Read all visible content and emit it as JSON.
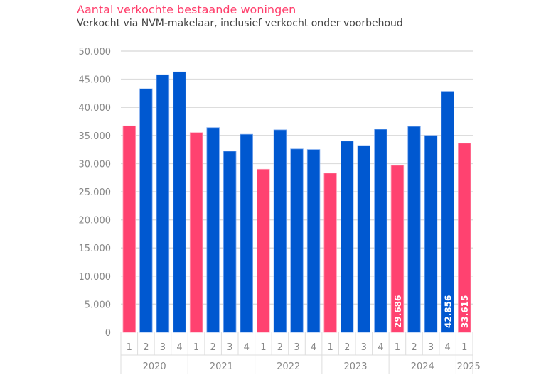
{
  "chart_data": {
    "type": "bar",
    "title": "Aantal verkochte bestaande woningen",
    "subtitle": "Verkocht via NVM-makelaar, inclusief verkocht onder voorbehoud",
    "ylim": [
      0,
      50000
    ],
    "yticks": [
      "0",
      "5.000",
      "10.000",
      "15.000",
      "20.000",
      "25.000",
      "30.000",
      "35.000",
      "40.000",
      "45.000",
      "50.000"
    ],
    "grid": true,
    "years": [
      "2020",
      "2021",
      "2022",
      "2023",
      "2024",
      "2025"
    ],
    "quarters": [
      "1",
      "2",
      "3",
      "4",
      "1",
      "2",
      "3",
      "4",
      "1",
      "2",
      "3",
      "4",
      "1",
      "2",
      "3",
      "4",
      "1",
      "2",
      "3",
      "4",
      "1"
    ],
    "values": [
      36700,
      43300,
      45800,
      46300,
      35500,
      36400,
      32200,
      35200,
      29000,
      36000,
      32600,
      32500,
      28300,
      34000,
      33200,
      36100,
      29686,
      36600,
      35000,
      42856,
      33615
    ],
    "data_labels": {
      "16": "29.686",
      "19": "42.856",
      "20": "33.615"
    },
    "colors": {
      "q1": "#ff4270",
      "other": "#0058d0"
    }
  }
}
